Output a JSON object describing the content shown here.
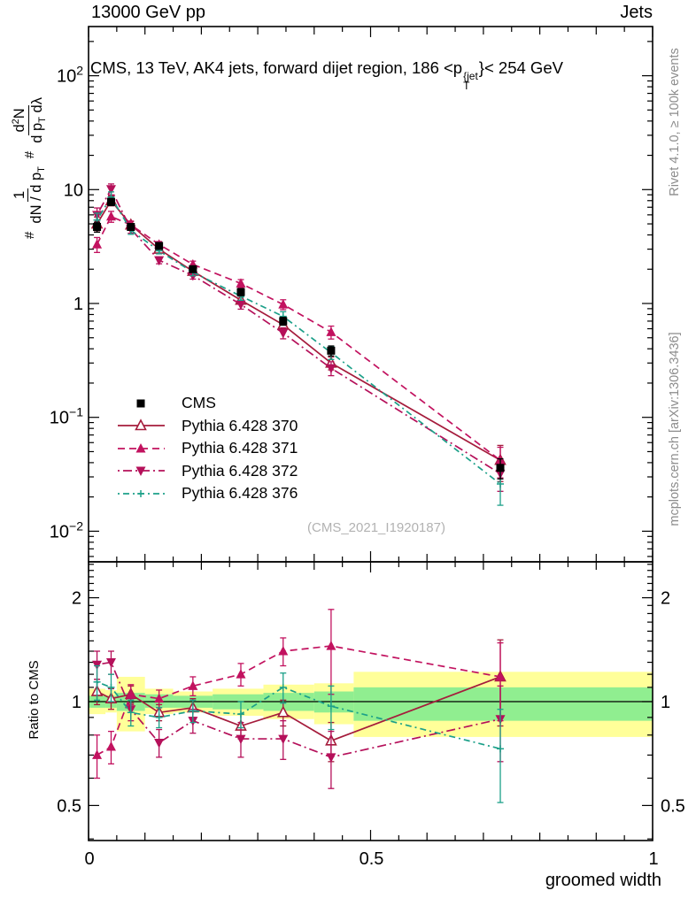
{
  "header": {
    "left": "13000 GeV pp",
    "right": "Jets"
  },
  "title": {
    "pre": "CMS, 13 TeV, AK4 jets, forward dijet region, 186 <p",
    "sup": "{jet",
    "sub": "T",
    "post": "}< 254 GeV"
  },
  "watermark": "(CMS_2021_I1920187)",
  "side_notes": {
    "top": "Rivet 4.1.0, ≥ 100k events",
    "bottom": "mcplots.cern.ch [arXiv:1306.3436]"
  },
  "xlabel": "groomed width",
  "ratio_label": "Ratio to CMS",
  "ylabel": {
    "h1": "#",
    "f1num": "1",
    "f1den": "dN / d p",
    "f1densub": "T",
    "h2": "#",
    "f2num": "d",
    "f2numsup": "2",
    "f2numtail": "N",
    "f2den": "d p",
    "f2densub": "T",
    "f2dentail": " dλ"
  },
  "chart_data": {
    "type": "line",
    "title": "CMS, 13 TeV, AK4 jets, forward dijet region, 186 < pT{jet} < 254 GeV",
    "xlabel": "groomed width",
    "ylabel_main": "1/(dN/dpT) d²N/(dpT dλ)",
    "ylabel_ratio": "Ratio to CMS",
    "legend_position": "inside-middle-left",
    "grid": false,
    "xlim": [
      0,
      1
    ],
    "main_ylog_range": [
      0.005,
      270
    ],
    "ratio_ylog_range": [
      0.395,
      2.54
    ],
    "x": [
      0.015,
      0.04,
      0.075,
      0.125,
      0.185,
      0.27,
      0.345,
      0.43,
      0.73
    ],
    "x_ticks": {
      "major": [
        {
          "v": 0,
          "label": "0"
        },
        {
          "v": 0.5,
          "label": "0.5"
        },
        {
          "v": 1,
          "label": "1"
        }
      ],
      "minor_step": 0.05
    },
    "main_yticks": [
      {
        "v": 100,
        "base": "10",
        "exp": "2"
      },
      {
        "v": 10,
        "base": "10",
        "exp": ""
      },
      {
        "v": 1,
        "base": "1",
        "exp": ""
      },
      {
        "v": 0.1,
        "base": "10",
        "exp": "−1"
      },
      {
        "v": 0.01,
        "base": "10",
        "exp": "−2"
      }
    ],
    "ratio_yticks": [
      {
        "v": 2,
        "label": "2"
      },
      {
        "v": 1,
        "label": "1"
      },
      {
        "v": 0.5,
        "label": "0.5"
      }
    ],
    "series": [
      {
        "label": "CMS",
        "color": "#000000",
        "line": "none",
        "marker": "square",
        "values": [
          4.7,
          7.8,
          4.7,
          3.2,
          2.0,
          1.26,
          0.7,
          0.385,
          0.036
        ],
        "rel_err": [
          0.1,
          0.07,
          0.05,
          0.05,
          0.06,
          0.07,
          0.08,
          0.1,
          0.2
        ]
      },
      {
        "label": "Pythia 6.428 370",
        "color": "#a51c3c",
        "line": "solid",
        "marker": "triangle-up-open",
        "values": [
          5.0,
          8.0,
          4.9,
          3.0,
          1.92,
          1.07,
          0.65,
          0.3,
          0.042
        ],
        "rel_err": [
          0.15,
          0.1,
          0.07,
          0.06,
          0.07,
          0.08,
          0.1,
          0.13,
          0.35
        ],
        "ratio": [
          1.07,
          1.02,
          1.05,
          0.93,
          0.96,
          0.85,
          0.93,
          0.77,
          1.18
        ],
        "ratio_err": [
          0.09,
          0.07,
          0.06,
          0.05,
          0.06,
          0.07,
          0.08,
          0.1,
          0.33
        ]
      },
      {
        "label": "Pythia 6.428 371",
        "color": "#c2125f",
        "line": "dashed",
        "marker": "triangle-up",
        "values": [
          3.3,
          5.8,
          4.9,
          3.3,
          2.2,
          1.5,
          0.98,
          0.56,
          0.042
        ],
        "rel_err": [
          0.15,
          0.11,
          0.08,
          0.06,
          0.07,
          0.08,
          0.1,
          0.13,
          0.3
        ],
        "ratio": [
          0.7,
          0.74,
          1.05,
          1.02,
          1.11,
          1.2,
          1.4,
          1.45,
          1.18
        ],
        "ratio_err": [
          0.1,
          0.08,
          0.07,
          0.06,
          0.07,
          0.09,
          0.13,
          0.4,
          0.3
        ]
      },
      {
        "label": "Pythia 6.428 372",
        "color": "#b5105a",
        "line": "dashdot",
        "marker": "triangle-down",
        "values": [
          6.0,
          10.1,
          4.5,
          2.4,
          1.76,
          0.98,
          0.55,
          0.27,
          0.032
        ],
        "rel_err": [
          0.15,
          0.11,
          0.08,
          0.07,
          0.07,
          0.09,
          0.11,
          0.14,
          0.3
        ],
        "ratio": [
          1.28,
          1.3,
          0.95,
          0.76,
          0.88,
          0.78,
          0.78,
          0.69,
          0.89
        ],
        "ratio_err": [
          0.12,
          0.1,
          0.07,
          0.07,
          0.07,
          0.09,
          0.1,
          0.13,
          0.22
        ]
      },
      {
        "label": "Pythia 6.428 376",
        "color": "#1ca089",
        "line": "dashdotdot",
        "marker": "plus",
        "values": [
          5.4,
          8.6,
          4.4,
          2.9,
          1.88,
          1.16,
          0.77,
          0.37,
          0.026
        ],
        "rel_err": [
          0.15,
          0.11,
          0.08,
          0.06,
          0.07,
          0.08,
          0.1,
          0.13,
          0.35
        ],
        "ratio": [
          1.14,
          1.1,
          0.93,
          0.9,
          0.94,
          0.92,
          1.1,
          0.97,
          0.73
        ],
        "ratio_err": [
          0.13,
          0.1,
          0.08,
          0.06,
          0.07,
          0.08,
          0.11,
          0.14,
          0.22
        ]
      }
    ],
    "ratio_bands": {
      "edges": [
        0,
        0.03,
        0.05,
        0.1,
        0.15,
        0.22,
        0.31,
        0.4,
        0.47,
        1.0
      ],
      "yellow_lo": [
        0.92,
        0.93,
        0.82,
        0.92,
        0.93,
        0.91,
        0.89,
        0.86,
        0.79
      ],
      "yellow_hi": [
        1.09,
        1.08,
        1.18,
        1.09,
        1.07,
        1.09,
        1.12,
        1.13,
        1.22
      ],
      "green_lo": [
        0.96,
        0.96,
        0.94,
        0.96,
        0.96,
        0.95,
        0.94,
        0.93,
        0.88
      ],
      "green_hi": [
        1.04,
        1.04,
        1.06,
        1.05,
        1.04,
        1.05,
        1.06,
        1.07,
        1.1
      ],
      "color_yellow": "#ffff99",
      "color_green": "#90ee90"
    }
  }
}
